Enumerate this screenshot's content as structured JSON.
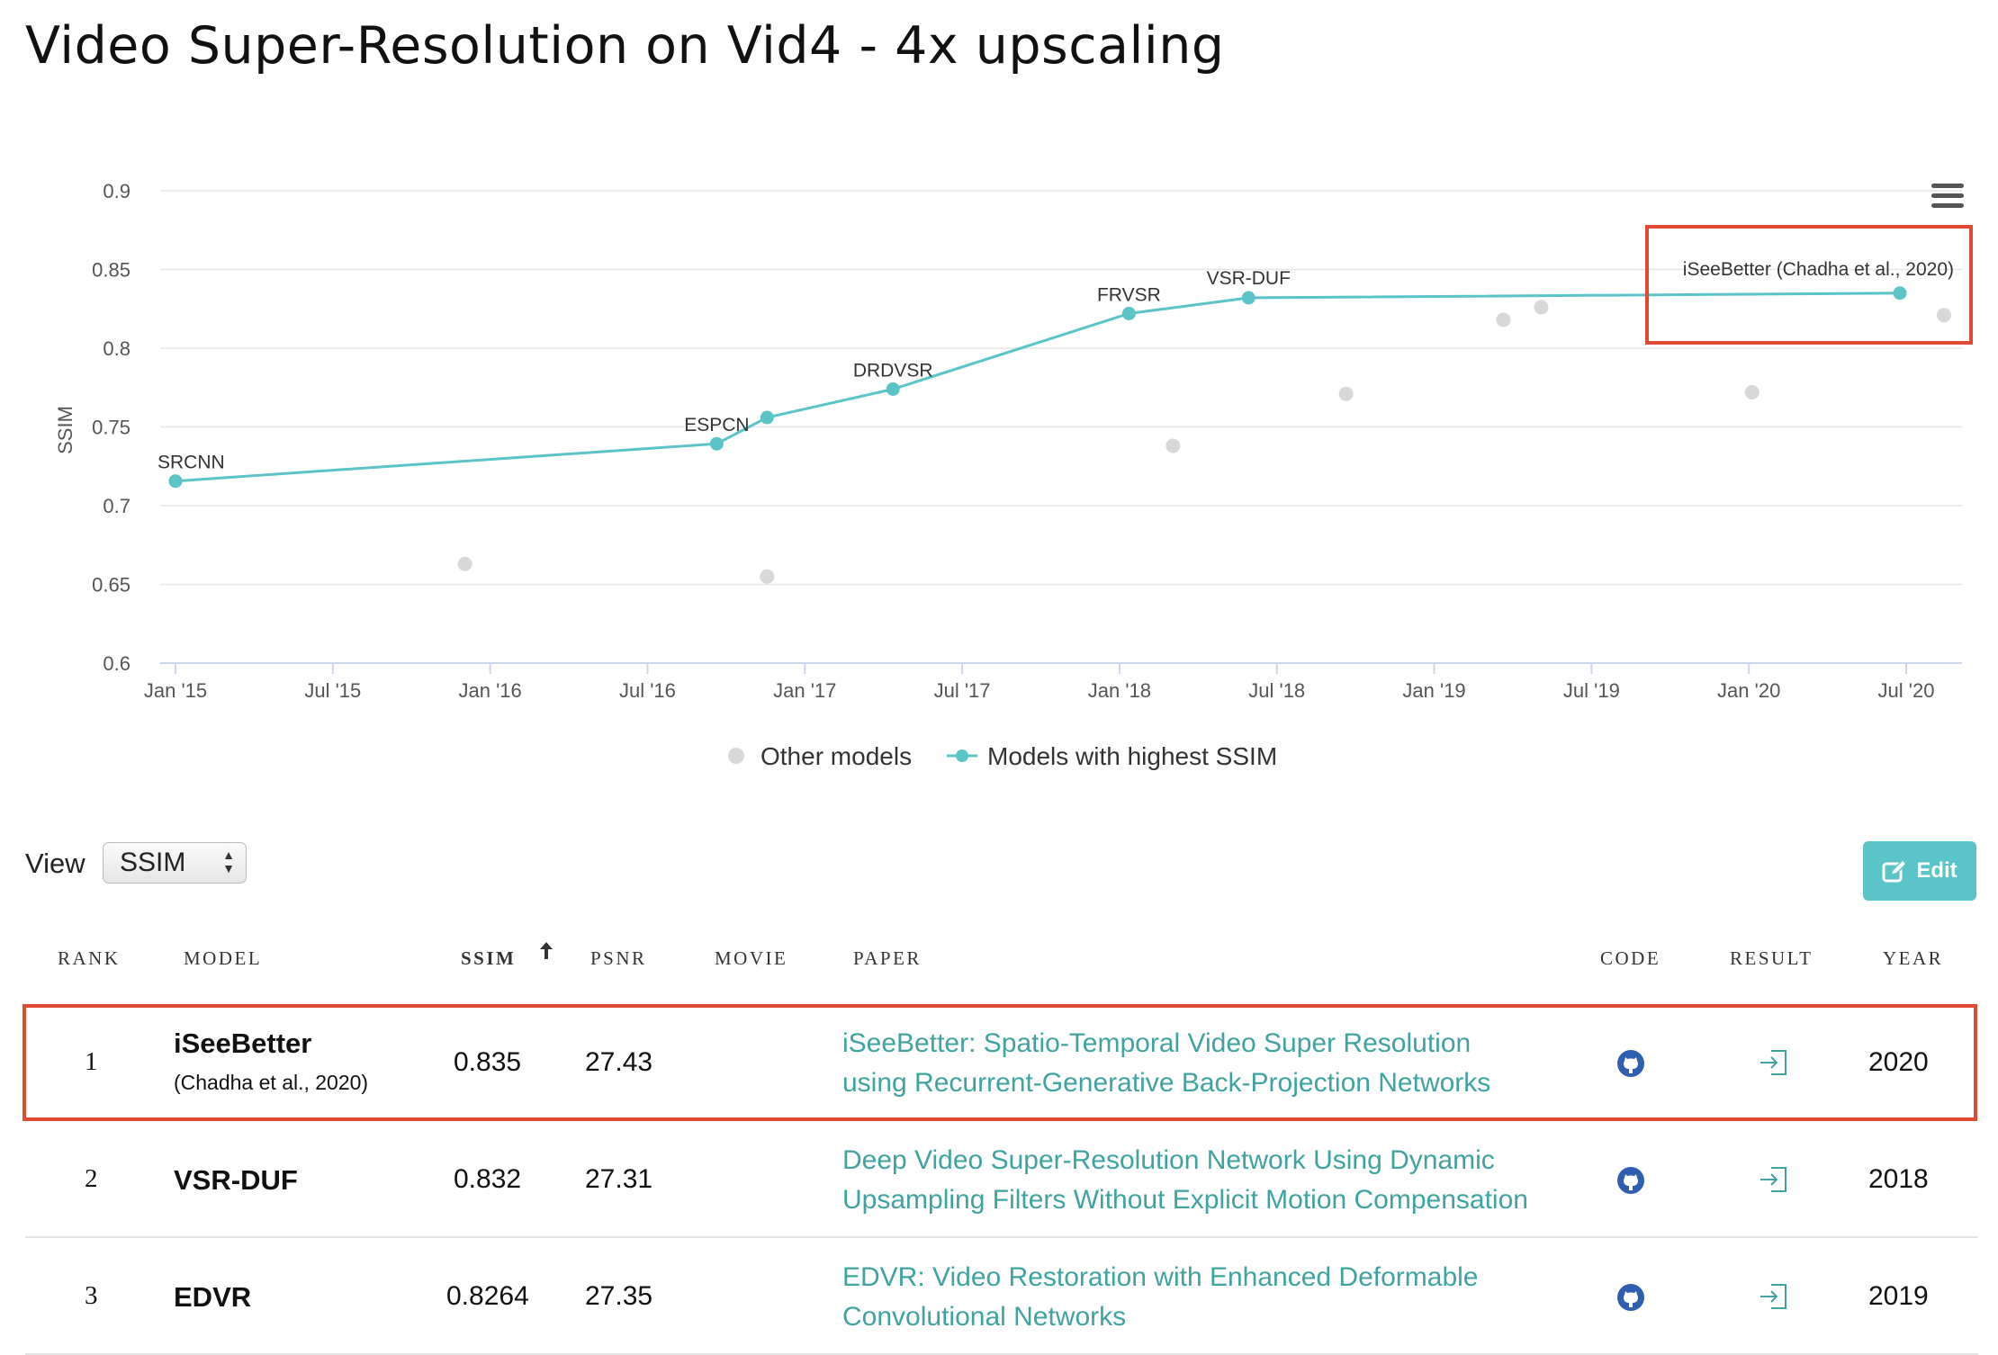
{
  "page": {
    "title": "Video Super-Resolution on Vid4 - 4x upscaling"
  },
  "chart_data": {
    "type": "scatter",
    "title": "Video Super-Resolution on Vid4 - 4x upscaling",
    "ylabel": "SSIM",
    "xlabel": "",
    "ylim": [
      0.6,
      0.9
    ],
    "yticks": [
      "0.6",
      "0.65",
      "0.7",
      "0.75",
      "0.8",
      "0.85",
      "0.9"
    ],
    "xticks": [
      {
        "label": "Jan '15",
        "t": 2015.0
      },
      {
        "label": "Jul '15",
        "t": 2015.5
      },
      {
        "label": "Jan '16",
        "t": 2016.0
      },
      {
        "label": "Jul '16",
        "t": 2016.5
      },
      {
        "label": "Jan '17",
        "t": 2017.0
      },
      {
        "label": "Jul '17",
        "t": 2017.5
      },
      {
        "label": "Jan '18",
        "t": 2018.0
      },
      {
        "label": "Jul '18",
        "t": 2018.5
      },
      {
        "label": "Jan '19",
        "t": 2019.0
      },
      {
        "label": "Jul '19",
        "t": 2019.5
      },
      {
        "label": "Jan '20",
        "t": 2020.0
      },
      {
        "label": "Jul '20",
        "t": 2020.5
      }
    ],
    "xlim": [
      2014.95,
      2020.67
    ],
    "series": [
      {
        "name": "Models with highest SSIM",
        "color": "#5bc4c8",
        "points": [
          {
            "t": 2015.0,
            "y": 0.7156,
            "label": "SRCNN"
          },
          {
            "t": 2016.72,
            "y": 0.7393,
            "label": "ESPCN"
          },
          {
            "t": 2016.88,
            "y": 0.756,
            "label": ""
          },
          {
            "t": 2017.28,
            "y": 0.774,
            "label": "DRDVSR"
          },
          {
            "t": 2018.03,
            "y": 0.822,
            "label": "FRVSR"
          },
          {
            "t": 2018.41,
            "y": 0.832,
            "label": "VSR-DUF"
          },
          {
            "t": 2020.48,
            "y": 0.835,
            "label": "iSeeBetter (Chadha et al., 2020)"
          }
        ]
      },
      {
        "name": "Other models",
        "color": "#d8d8d8",
        "points": [
          {
            "t": 2015.92,
            "y": 0.663
          },
          {
            "t": 2016.88,
            "y": 0.655
          },
          {
            "t": 2018.17,
            "y": 0.738
          },
          {
            "t": 2018.72,
            "y": 0.771
          },
          {
            "t": 2019.22,
            "y": 0.818
          },
          {
            "t": 2019.34,
            "y": 0.826
          },
          {
            "t": 2020.01,
            "y": 0.772
          },
          {
            "t": 2020.62,
            "y": 0.821
          }
        ]
      }
    ],
    "legend": [
      "Other models",
      "Models with highest SSIM"
    ],
    "legend_position": "bottom-center",
    "grid": true
  },
  "controls": {
    "view_label": "View",
    "view_selected": "SSIM",
    "edit_label": "Edit"
  },
  "table": {
    "headers": {
      "rank": "RANK",
      "model": "MODEL",
      "ssim": "SSIM",
      "psnr": "PSNR",
      "movie": "MOVIE",
      "paper": "PAPER",
      "code": "CODE",
      "result": "RESULT",
      "year": "YEAR"
    },
    "rows": [
      {
        "rank": "1",
        "model": "iSeeBetter",
        "model_sub": "(Chadha et al., 2020)",
        "ssim": "0.835",
        "psnr": "27.43",
        "paper_line1": "iSeeBetter: Spatio-Temporal Video Super Resolution",
        "paper_line2": "using Recurrent-Generative Back-Projection Networks",
        "year": "2020"
      },
      {
        "rank": "2",
        "model": "VSR-DUF",
        "model_sub": "",
        "ssim": "0.832",
        "psnr": "27.31",
        "paper_line1": "Deep Video Super-Resolution Network Using Dynamic",
        "paper_line2": "Upsampling Filters Without Explicit Motion Compensation",
        "year": "2018"
      },
      {
        "rank": "3",
        "model": "EDVR",
        "model_sub": "",
        "ssim": "0.8264",
        "psnr": "27.35",
        "paper_line1": "EDVR: Video Restoration with Enhanced Deformable",
        "paper_line2": "Convolutional Networks",
        "year": "2019"
      }
    ]
  },
  "icons": {
    "menu": "hamburger-menu-icon",
    "code": "github-icon",
    "result": "enter-icon",
    "sort": "arrow-up-icon",
    "edit": "edit-icon"
  },
  "colors": {
    "accent": "#5bc4c8",
    "link": "#3fa3a0",
    "highlight": "#e04a33",
    "other": "#d8d8d8"
  }
}
